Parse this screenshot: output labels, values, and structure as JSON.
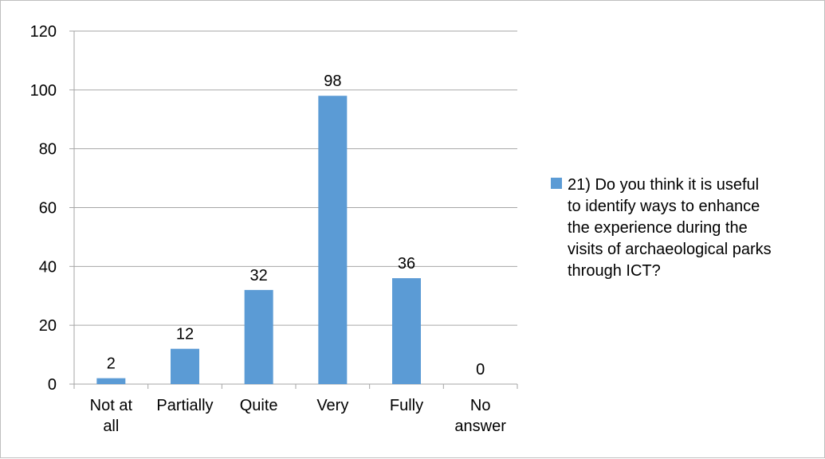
{
  "chart_data": {
    "type": "bar",
    "categories": [
      [
        "Not at",
        "all"
      ],
      [
        "Partially"
      ],
      [
        "Quite"
      ],
      [
        "Very"
      ],
      [
        "Fully"
      ],
      [
        "No",
        "answer"
      ]
    ],
    "series": [
      {
        "name": [
          "21) Do you think it is useful",
          "to identify ways to enhance",
          "the experience during the",
          "visits of archaeological parks",
          "through ICT?"
        ],
        "values": [
          2,
          12,
          32,
          98,
          36,
          0
        ],
        "color": "#5b9bd5"
      }
    ],
    "data_labels": [
      "2",
      "12",
      "32",
      "98",
      "36",
      "0"
    ],
    "y_ticks": [
      "0",
      "20",
      "40",
      "60",
      "80",
      "100",
      "120"
    ],
    "ylim": [
      0,
      120
    ],
    "grid": true,
    "legend_position": "right",
    "gridline_color": "#a6a6a6",
    "axis_color": "#a6a6a6"
  }
}
